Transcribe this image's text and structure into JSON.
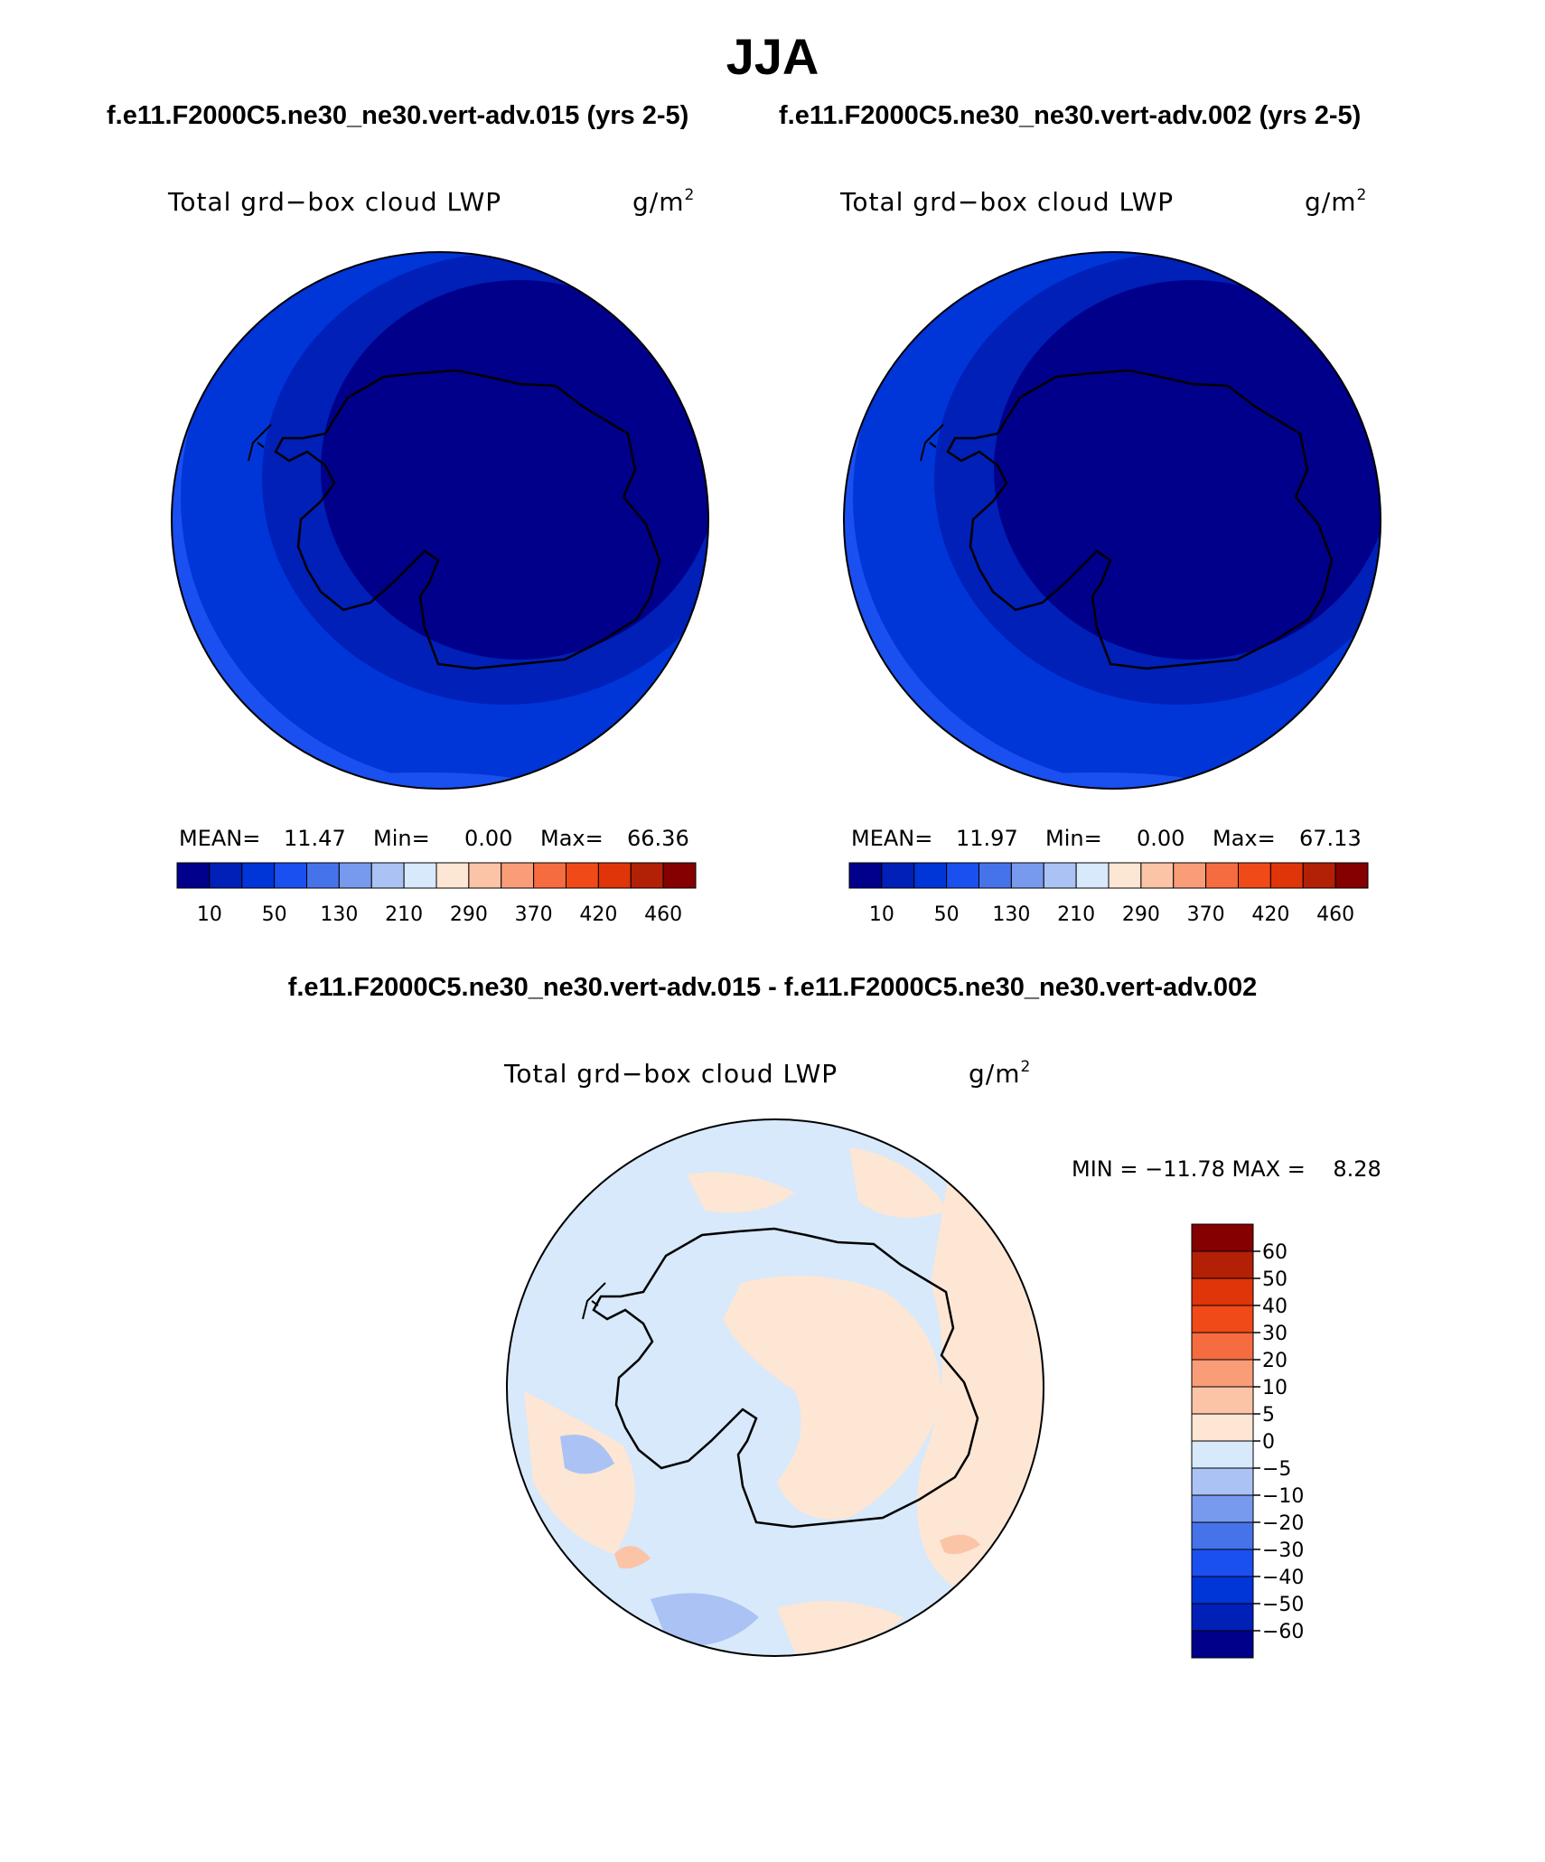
{
  "title": "JJA",
  "panels": [
    {
      "case_title": "f.e11.F2000C5.ne30_ne30.vert-adv.015 (yrs 2-5)",
      "variable": "Total grd−box cloud LWP",
      "units": "g/m",
      "units_exponent": "2",
      "mean_label": "MEAN=",
      "mean": "11.47",
      "min_label": "Min=",
      "min": "0.00",
      "max_label": "Max=",
      "max": "66.36"
    },
    {
      "case_title": "f.e11.F2000C5.ne30_ne30.vert-adv.002 (yrs 2-5)",
      "variable": "Total grd−box cloud LWP",
      "units": "g/m",
      "units_exponent": "2",
      "mean_label": "MEAN=",
      "mean": "11.97",
      "min_label": "Min=",
      "min": "0.00",
      "max_label": "Max=",
      "max": "67.13"
    }
  ],
  "colorbar_main": {
    "colors": [
      "#00008b",
      "#0020b8",
      "#0035d8",
      "#1a4ff0",
      "#4672ea",
      "#7799ee",
      "#aac3f4",
      "#d7e9fb",
      "#fde6d4",
      "#fbc4a7",
      "#f89d78",
      "#f46c3f",
      "#f04a18",
      "#e03508",
      "#b22006",
      "#850000"
    ],
    "ticks": [
      "10",
      "50",
      "130",
      "210",
      "290",
      "370",
      "420",
      "460"
    ]
  },
  "difference": {
    "title": "f.e11.F2000C5.ne30_ne30.vert-adv.015 - f.e11.F2000C5.ne30_ne30.vert-adv.002",
    "variable": "Total grd−box cloud LWP",
    "units": "g/m",
    "units_exponent": "2",
    "min_max_text": "MIN = −11.78 MAX =    8.28",
    "colorbar": {
      "colors": [
        "#850000",
        "#b22006",
        "#e03508",
        "#f04a18",
        "#f46c3f",
        "#f89d78",
        "#fbc4a7",
        "#fde6d4",
        "#d7e9fb",
        "#aac3f4",
        "#7799ee",
        "#4672ea",
        "#1a4ff0",
        "#0035d8",
        "#0020b8",
        "#00008b"
      ],
      "ticks": [
        "60",
        "50",
        "40",
        "30",
        "20",
        "10",
        "5",
        "0",
        "−5",
        "−10",
        "−20",
        "−30",
        "−40",
        "−50",
        "−60"
      ]
    }
  }
}
